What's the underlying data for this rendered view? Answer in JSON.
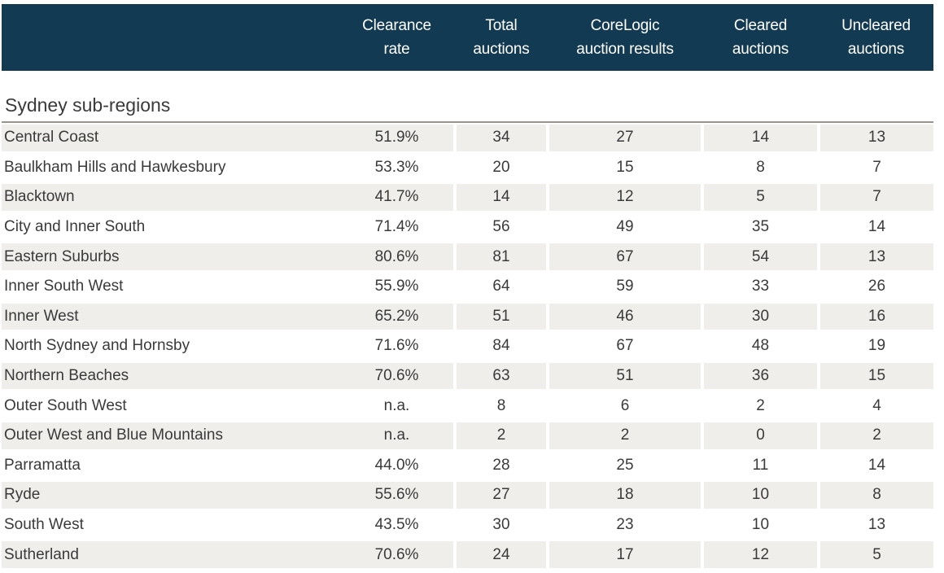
{
  "table": {
    "columns": [
      "",
      "Clearance\nrate",
      "Total\nauctions",
      "CoreLogic\nauction results",
      "Cleared\nauctions",
      "Uncleared\nauctions"
    ],
    "section_title": "Sydney sub-regions",
    "rows": [
      {
        "name": "Central Coast",
        "values": [
          "51.9%",
          "34",
          "27",
          "14",
          "13"
        ]
      },
      {
        "name": "Baulkham Hills and Hawkesbury",
        "values": [
          "53.3%",
          "20",
          "15",
          "8",
          "7"
        ]
      },
      {
        "name": "Blacktown",
        "values": [
          "41.7%",
          "14",
          "12",
          "5",
          "7"
        ]
      },
      {
        "name": "City and Inner South",
        "values": [
          "71.4%",
          "56",
          "49",
          "35",
          "14"
        ]
      },
      {
        "name": "Eastern Suburbs",
        "values": [
          "80.6%",
          "81",
          "67",
          "54",
          "13"
        ]
      },
      {
        "name": "Inner South West",
        "values": [
          "55.9%",
          "64",
          "59",
          "33",
          "26"
        ]
      },
      {
        "name": "Inner West",
        "values": [
          "65.2%",
          "51",
          "46",
          "30",
          "16"
        ]
      },
      {
        "name": "North Sydney and Hornsby",
        "values": [
          "71.6%",
          "84",
          "67",
          "48",
          "19"
        ]
      },
      {
        "name": "Northern Beaches",
        "values": [
          "70.6%",
          "63",
          "51",
          "36",
          "15"
        ]
      },
      {
        "name": "Outer South West",
        "values": [
          "n.a.",
          "8",
          "6",
          "2",
          "4"
        ]
      },
      {
        "name": "Outer West and Blue Mountains",
        "values": [
          "n.a.",
          "2",
          "2",
          "0",
          "2"
        ]
      },
      {
        "name": "Parramatta",
        "values": [
          "44.0%",
          "28",
          "25",
          "11",
          "14"
        ]
      },
      {
        "name": "Ryde",
        "values": [
          "55.6%",
          "27",
          "18",
          "10",
          "8"
        ]
      },
      {
        "name": "South West",
        "values": [
          "43.5%",
          "30",
          "23",
          "10",
          "13"
        ]
      },
      {
        "name": "Sutherland",
        "values": [
          "70.6%",
          "24",
          "17",
          "12",
          "5"
        ]
      }
    ]
  },
  "colors": {
    "header_bg": "#123a52",
    "header_text": "#ffffff",
    "row_shade": "#efeeea",
    "rule": "#9a938a"
  },
  "chart_data": {
    "type": "table",
    "title": "Sydney sub-regions",
    "columns": [
      "Clearance rate",
      "Total auctions",
      "CoreLogic auction results",
      "Cleared auctions",
      "Uncleared auctions"
    ],
    "rows": [
      [
        "Central Coast",
        "51.9%",
        34,
        27,
        14,
        13
      ],
      [
        "Baulkham Hills and Hawkesbury",
        "53.3%",
        20,
        15,
        8,
        7
      ],
      [
        "Blacktown",
        "41.7%",
        14,
        12,
        5,
        7
      ],
      [
        "City and Inner South",
        "71.4%",
        56,
        49,
        35,
        14
      ],
      [
        "Eastern Suburbs",
        "80.6%",
        81,
        67,
        54,
        13
      ],
      [
        "Inner South West",
        "55.9%",
        64,
        59,
        33,
        26
      ],
      [
        "Inner West",
        "65.2%",
        51,
        46,
        30,
        16
      ],
      [
        "North Sydney and Hornsby",
        "71.6%",
        84,
        67,
        48,
        19
      ],
      [
        "Northern Beaches",
        "70.6%",
        63,
        51,
        36,
        15
      ],
      [
        "Outer South West",
        "n.a.",
        8,
        6,
        2,
        4
      ],
      [
        "Outer West and Blue Mountains",
        "n.a.",
        2,
        2,
        0,
        2
      ],
      [
        "Parramatta",
        "44.0%",
        28,
        25,
        11,
        14
      ],
      [
        "Ryde",
        "55.6%",
        27,
        18,
        10,
        8
      ],
      [
        "South West",
        "43.5%",
        30,
        23,
        10,
        13
      ],
      [
        "Sutherland",
        "70.6%",
        24,
        17,
        12,
        5
      ]
    ]
  }
}
